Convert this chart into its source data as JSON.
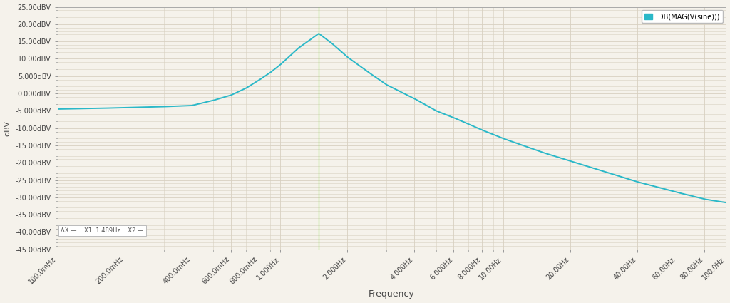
{
  "background_color": "#f5f2eb",
  "plot_bg_color": "#f5f2eb",
  "grid_color": "#d8d0c0",
  "curve_color": "#2ab8c8",
  "curve_linewidth": 1.4,
  "peak_line_color": "#88dd44",
  "peak_freq": 1.489,
  "peak_db": 17.3,
  "xmin": 0.1,
  "xmax": 100.0,
  "ymin": -45.0,
  "ymax": 25.0,
  "yticks": [
    25,
    20,
    15,
    10,
    5,
    0,
    -5,
    -10,
    -15,
    -20,
    -25,
    -30,
    -35,
    -40,
    -45
  ],
  "ytick_labels": [
    "25.00dBV",
    "20.00dBV",
    "15.00dBV",
    "10.00dBV",
    "5.000dBV",
    "0.000dBV",
    "-5.000dBV",
    "-10.00dBV",
    "-15.00dBV",
    "-20.00dBV",
    "-25.00dBV",
    "-30.00dBV",
    "-35.00dBV",
    "-40.00dBV",
    "-45.00dBV"
  ],
  "xtick_labels": [
    "100.0mHz",
    "200.0mHz",
    "400.0mHz",
    "600.0mHz",
    "800.0mHz",
    "1.000Hz",
    "2.000Hz",
    "4.000Hz",
    "6.000Hz",
    "8.000Hz",
    "10.00Hz",
    "20.00Hz",
    "40.00Hz",
    "60.00Hz",
    "80.00Hz",
    "100.0Hz"
  ],
  "xtick_values": [
    0.1,
    0.2,
    0.4,
    0.6,
    0.8,
    1.0,
    2.0,
    4.0,
    6.0,
    8.0,
    10.0,
    20.0,
    40.0,
    60.0,
    80.0,
    100.0
  ],
  "xlabel": "Frequency",
  "ylabel": "dBV",
  "legend_label": "DB(MAG(V(sine)))",
  "legend_color": "#2ab8c8",
  "annotation_text": "ΔX —    X1: 1.489Hz    X2 —",
  "ylabel_fontsize": 8,
  "xlabel_fontsize": 9,
  "tick_fontsize": 7,
  "legend_fontsize": 7,
  "freq_points": [
    0.1,
    0.15,
    0.2,
    0.3,
    0.4,
    0.5,
    0.6,
    0.7,
    0.8,
    0.9,
    1.0,
    1.2,
    1.489,
    1.7,
    2.0,
    2.5,
    3.0,
    4.0,
    5.0,
    6.0,
    8.0,
    10.0,
    15.0,
    20.0,
    30.0,
    40.0,
    60.0,
    80.0,
    100.0
  ],
  "db_points": [
    -4.5,
    -4.3,
    -4.1,
    -3.8,
    -3.5,
    -2.0,
    -0.5,
    1.5,
    3.8,
    6.0,
    8.3,
    13.0,
    17.3,
    14.5,
    10.5,
    6.0,
    2.5,
    -1.5,
    -5.0,
    -7.0,
    -10.5,
    -13.0,
    -17.0,
    -19.5,
    -23.0,
    -25.5,
    -28.5,
    -30.5,
    -31.5
  ]
}
